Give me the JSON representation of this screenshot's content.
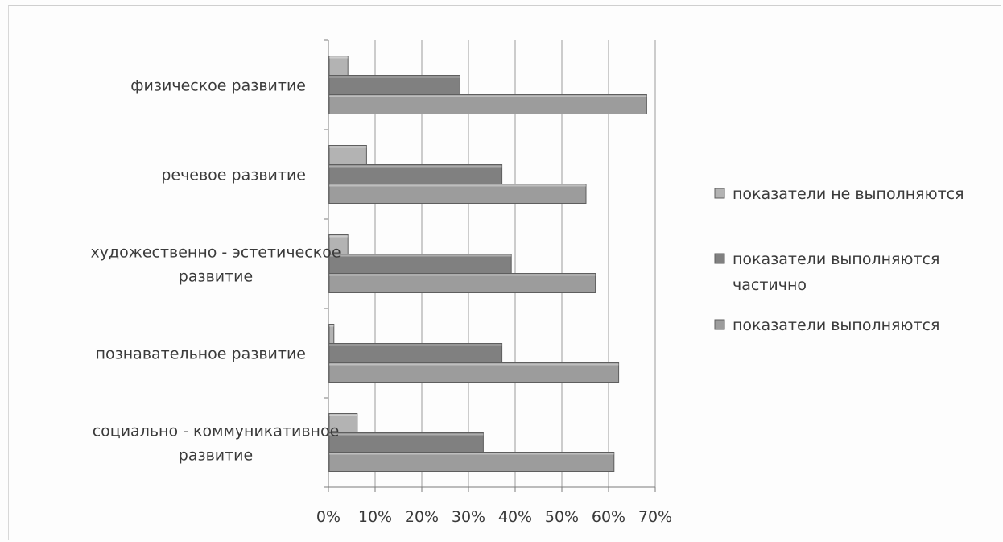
{
  "chart_data": {
    "type": "bar",
    "orientation": "horizontal",
    "categories": [
      "физическое развитие",
      "речевое развитие",
      "художественно - эстетическое развитие",
      "познавательное развитие",
      "социально - коммуникативное развитие"
    ],
    "category_lines": [
      [
        "физическое развитие"
      ],
      [
        "речевое развитие"
      ],
      [
        "художественно - эстетическое",
        "развитие"
      ],
      [
        "познавательное развитие"
      ],
      [
        "социально - коммуникативное",
        "развитие"
      ]
    ],
    "series": [
      {
        "name": "показатели не выполняются",
        "name_lines": [
          "показатели не выполняются"
        ],
        "color": "#b3b3b3",
        "values": [
          0.04,
          0.08,
          0.04,
          0.01,
          0.06
        ]
      },
      {
        "name": "показатели выполняются частично",
        "name_lines": [
          "показатели выполняются",
          "частично"
        ],
        "color": "#808080",
        "values": [
          0.28,
          0.37,
          0.39,
          0.37,
          0.33
        ]
      },
      {
        "name": "показатели выполняются",
        "name_lines": [
          "показатели выполняются"
        ],
        "color": "#9c9c9c",
        "values": [
          0.68,
          0.55,
          0.57,
          0.62,
          0.61
        ]
      }
    ],
    "xlim": [
      0,
      0.7
    ],
    "x_ticks": [
      "0%",
      "10%",
      "20%",
      "30%",
      "40%",
      "50%",
      "60%",
      "70%"
    ],
    "grid": true,
    "legend_position": "right",
    "title": "",
    "xlabel": "",
    "ylabel": ""
  }
}
